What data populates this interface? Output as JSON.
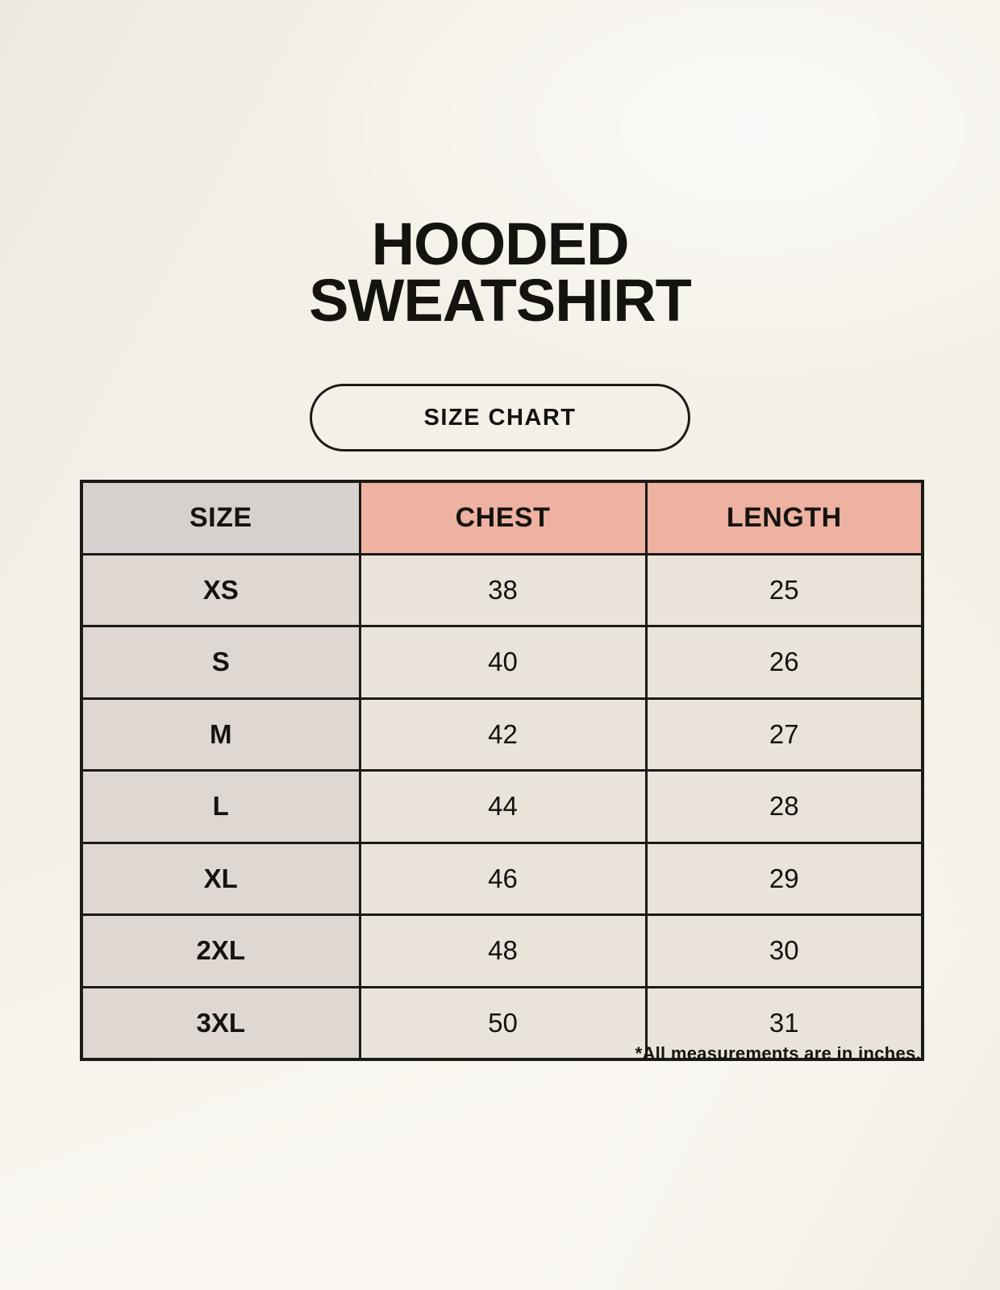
{
  "page": {
    "title_line1": "HOODED",
    "title_line2": "SWEATSHIRT",
    "badge_label": "SIZE CHART",
    "footnote": "*All measurements are in inches."
  },
  "colors": {
    "background": "#f8f5ee",
    "ink": "#15130f",
    "border": "#1c1a15",
    "header_accent_pink": "#edb2a1",
    "header_size_gray": "#d6d1ce",
    "row_label_gray": "#ded7d2",
    "data_cell_cream": "#e9e3d9"
  },
  "table": {
    "headers": [
      "SIZE",
      "CHEST",
      "LENGTH"
    ],
    "rows": [
      [
        "XS",
        "38",
        "25"
      ],
      [
        "S",
        "40",
        "26"
      ],
      [
        "M",
        "42",
        "27"
      ],
      [
        "L",
        "44",
        "28"
      ],
      [
        "XL",
        "46",
        "29"
      ],
      [
        "2XL",
        "48",
        "30"
      ],
      [
        "3XL",
        "50",
        "31"
      ]
    ],
    "units_note": "*All measurements are in inches."
  }
}
